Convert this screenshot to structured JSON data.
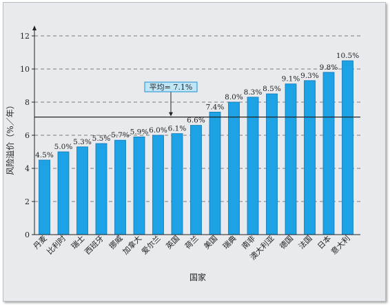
{
  "chart_data": {
    "type": "bar",
    "xlabel": "国家",
    "ylabel": "风险溢价（%／年）",
    "ylim": [
      0,
      12
    ],
    "yticks": [
      0,
      2,
      4,
      6,
      8,
      10,
      12
    ],
    "grid": "dashed horizontal",
    "categories": [
      "丹麦",
      "比利时",
      "瑞士",
      "西班牙",
      "挪威",
      "加拿大",
      "爱尔兰",
      "英国",
      "荷兰",
      "美国",
      "瑞典",
      "南非",
      "澳大利亚",
      "德国",
      "法国",
      "日本",
      "意大利"
    ],
    "values": [
      4.5,
      5.0,
      5.3,
      5.5,
      5.7,
      5.9,
      6.0,
      6.1,
      6.6,
      7.4,
      8.0,
      8.3,
      8.5,
      9.1,
      9.3,
      9.8,
      10.5
    ],
    "value_labels": [
      "4.5%",
      "5.0%",
      "5.3%",
      "5.5%",
      "5.7%",
      "5.9%",
      "6.0%",
      "6.1%",
      "6.6%",
      "7.4%",
      "8.0%",
      "8.3%",
      "8.5%",
      "9.1%",
      "9.3%",
      "9.8%",
      "10.5%"
    ],
    "average": {
      "value": 7.1,
      "label": "平均= 7.1%"
    },
    "colors": {
      "bar": "#1ea2e6",
      "bar_edge": "#1076b3",
      "avg_box": "#bfe6f7",
      "avg_box_edge": "#1c8fd0",
      "background": "#e8eaee"
    }
  }
}
